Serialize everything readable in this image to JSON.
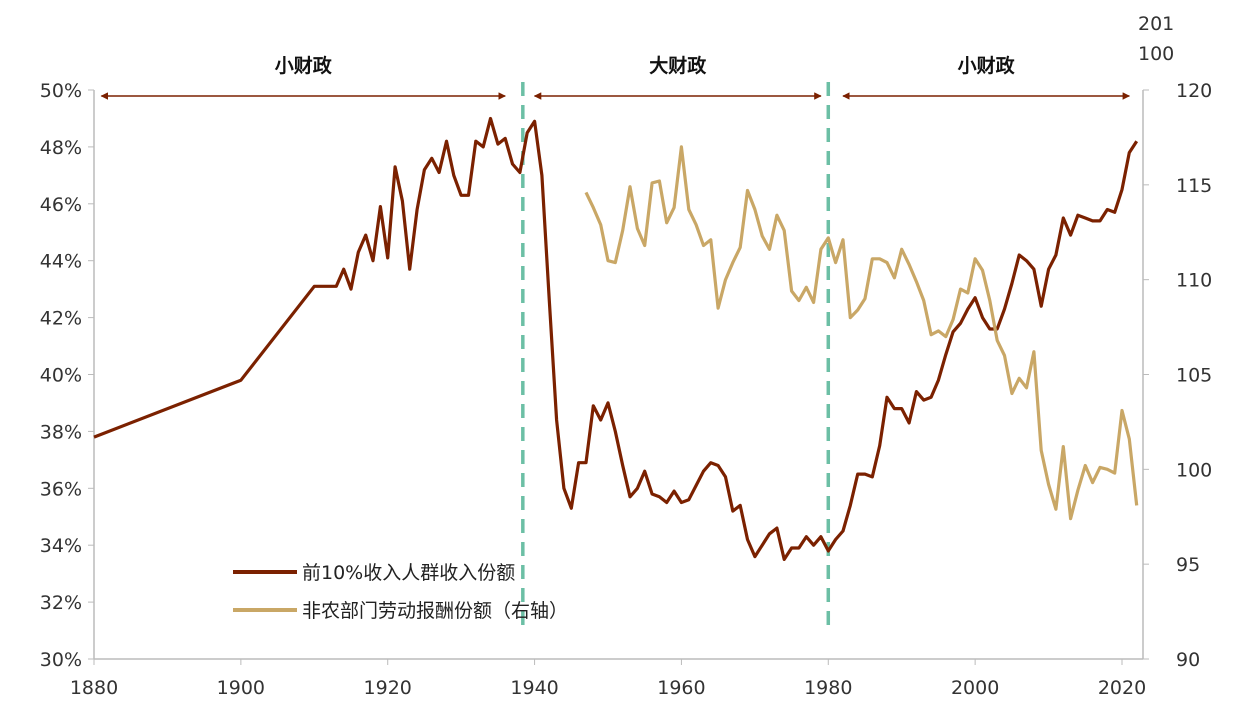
{
  "chart_data": {
    "type": "line",
    "title": "",
    "xlabel": "",
    "ylabel": "",
    "right_axis_header": [
      "201",
      "100"
    ],
    "xlim": [
      1880,
      2022
    ],
    "xticks": [
      "1880",
      "1900",
      "1920",
      "1940",
      "1960",
      "1980",
      "2000",
      "2020"
    ],
    "ylim_left": [
      30,
      50
    ],
    "yticks_left": [
      "30%",
      "32%",
      "34%",
      "36%",
      "38%",
      "40%",
      "42%",
      "44%",
      "46%",
      "48%",
      "50%"
    ],
    "ylim_right": [
      90,
      120
    ],
    "yticks_right": [
      "90",
      "95",
      "100",
      "105",
      "110",
      "115",
      "120"
    ],
    "eras": [
      {
        "label": "小财政",
        "from": 1881,
        "to": 1936
      },
      {
        "label": "大财政",
        "from": 1940,
        "to": 1979
      },
      {
        "label": "小财政",
        "from": 1982,
        "to": 2021
      }
    ],
    "dividers": [
      1938.4,
      1980
    ],
    "colors": {
      "top10": "#7b2100",
      "labor": "#c9a766",
      "divider": "#6cbfa5",
      "arrow": "#7b2100"
    },
    "series": [
      {
        "name": "前10%收入人群收入份额",
        "axis": "left",
        "x": [
          1880,
          1900,
          1910,
          1913,
          1914,
          1915,
          1916,
          1917,
          1918,
          1919,
          1920,
          1921,
          1922,
          1923,
          1924,
          1925,
          1926,
          1927,
          1928,
          1929,
          1930,
          1931,
          1932,
          1933,
          1934,
          1935,
          1936,
          1937,
          1938,
          1939,
          1940,
          1941,
          1942,
          1943,
          1944,
          1945,
          1946,
          1947,
          1948,
          1949,
          1950,
          1951,
          1952,
          1953,
          1954,
          1955,
          1956,
          1957,
          1958,
          1959,
          1960,
          1961,
          1962,
          1963,
          1964,
          1965,
          1966,
          1967,
          1968,
          1969,
          1970,
          1971,
          1972,
          1973,
          1974,
          1975,
          1976,
          1977,
          1978,
          1979,
          1980,
          1981,
          1982,
          1983,
          1984,
          1985,
          1986,
          1987,
          1988,
          1989,
          1990,
          1991,
          1992,
          1993,
          1994,
          1995,
          1996,
          1997,
          1998,
          1999,
          2000,
          2001,
          2002,
          2003,
          2004,
          2005,
          2006,
          2007,
          2008,
          2009,
          2010,
          2011,
          2012,
          2013,
          2014,
          2015,
          2016,
          2017,
          2018,
          2019,
          2020,
          2021,
          2022
        ],
        "values": [
          37.8,
          39.8,
          43.1,
          43.1,
          43.7,
          43.0,
          44.3,
          44.9,
          44.0,
          45.9,
          44.1,
          47.3,
          46.1,
          43.7,
          45.8,
          47.2,
          47.6,
          47.1,
          48.2,
          47.0,
          46.3,
          46.3,
          48.2,
          48.0,
          49.0,
          48.1,
          48.3,
          47.4,
          47.1,
          48.5,
          48.9,
          47.0,
          42.6,
          38.4,
          36.0,
          35.3,
          36.9,
          36.9,
          38.9,
          38.4,
          39.0,
          38.0,
          36.8,
          35.7,
          36.0,
          36.6,
          35.8,
          35.7,
          35.5,
          35.9,
          35.5,
          35.6,
          36.1,
          36.6,
          36.9,
          36.8,
          36.4,
          35.2,
          35.4,
          34.2,
          33.6,
          34.0,
          34.4,
          34.6,
          33.5,
          33.9,
          33.9,
          34.3,
          34.0,
          34.3,
          33.8,
          34.2,
          34.5,
          35.4,
          36.5,
          36.5,
          36.4,
          37.5,
          39.2,
          38.8,
          38.8,
          38.3,
          39.4,
          39.1,
          39.2,
          39.8,
          40.7,
          41.5,
          41.8,
          42.3,
          42.7,
          42.0,
          41.6,
          41.6,
          42.3,
          43.2,
          44.2,
          44.0,
          43.7,
          42.4,
          43.7,
          44.2,
          45.5,
          44.9,
          45.6,
          45.5,
          45.4,
          45.4,
          45.8,
          45.7,
          46.5,
          47.8,
          48.2
        ]
      },
      {
        "name": "非农部门劳动报酬份额（右轴）",
        "axis": "right",
        "x": [
          1947,
          1948,
          1949,
          1950,
          1951,
          1952,
          1953,
          1954,
          1955,
          1956,
          1957,
          1958,
          1959,
          1960,
          1961,
          1962,
          1963,
          1964,
          1965,
          1966,
          1967,
          1968,
          1969,
          1970,
          1971,
          1972,
          1973,
          1974,
          1975,
          1976,
          1977,
          1978,
          1979,
          1980,
          1981,
          1982,
          1983,
          1984,
          1985,
          1986,
          1987,
          1988,
          1989,
          1990,
          1991,
          1992,
          1993,
          1994,
          1995,
          1996,
          1997,
          1998,
          1999,
          2000,
          2001,
          2002,
          2003,
          2004,
          2005,
          2006,
          2007,
          2008,
          2009,
          2010,
          2011,
          2012,
          2013,
          2014,
          2015,
          2016,
          2017,
          2018,
          2019,
          2020,
          2021,
          2022
        ],
        "values": [
          114.6,
          113.8,
          112.9,
          111.0,
          110.9,
          112.6,
          114.9,
          112.7,
          111.8,
          115.1,
          115.2,
          113.0,
          113.8,
          117.0,
          113.7,
          112.9,
          111.8,
          112.1,
          108.5,
          110.0,
          110.9,
          111.7,
          114.7,
          113.7,
          112.3,
          111.6,
          113.4,
          112.6,
          109.4,
          108.9,
          109.6,
          108.8,
          111.6,
          112.2,
          110.9,
          112.1,
          108.0,
          108.4,
          109.0,
          111.1,
          111.1,
          110.9,
          110.1,
          111.6,
          110.8,
          109.9,
          108.9,
          107.1,
          107.3,
          107.0,
          107.9,
          109.5,
          109.3,
          111.1,
          110.5,
          108.9,
          106.8,
          106.0,
          104.0,
          104.8,
          104.3,
          106.2,
          101.0,
          99.2,
          97.9,
          101.2,
          97.4,
          98.9,
          100.2,
          99.3,
          100.1,
          100.0,
          99.8,
          103.1,
          101.6,
          98.1
        ]
      }
    ],
    "legend": {
      "position": "bottom-left"
    }
  }
}
